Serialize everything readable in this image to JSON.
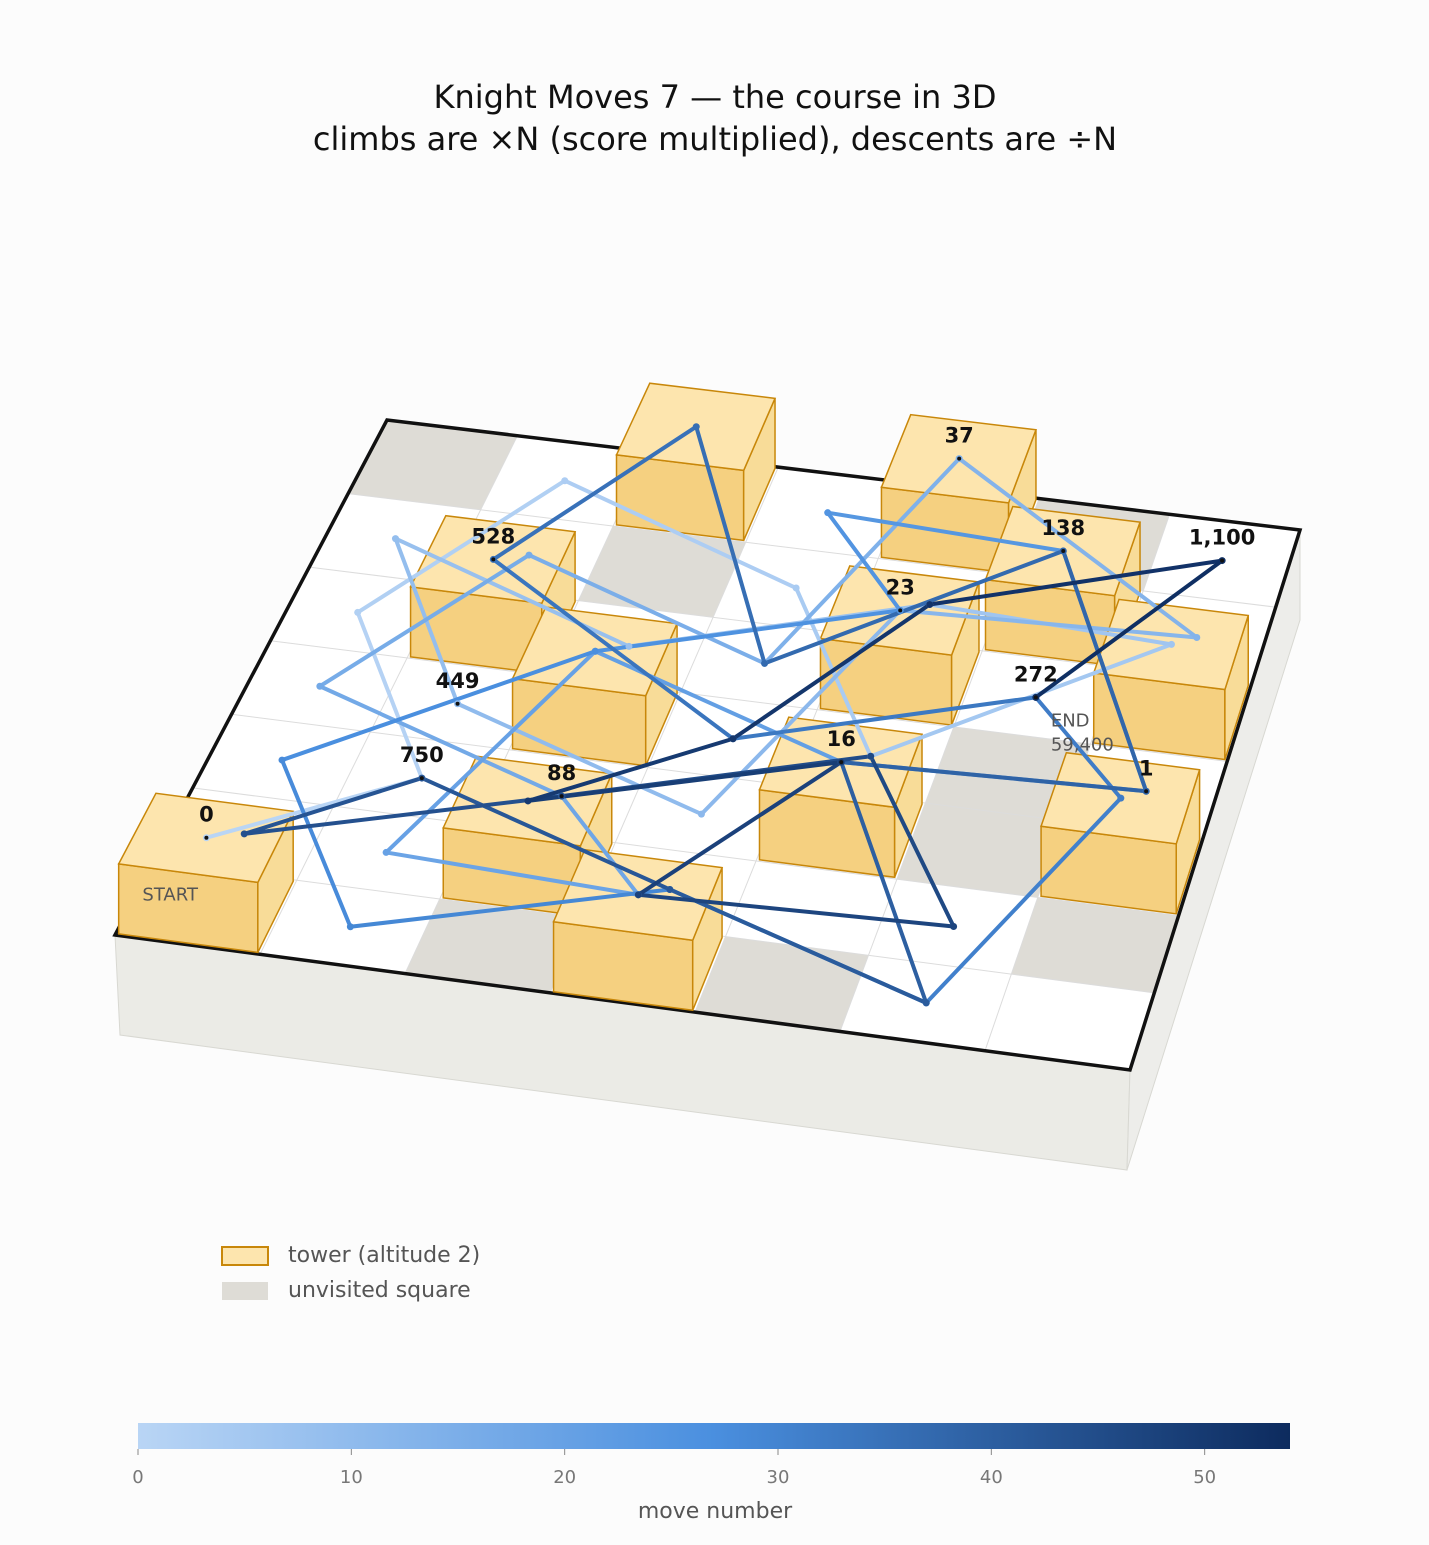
{
  "chart_data": {
    "type": "board3d",
    "title": "Knight Moves 7 — the course in 3D",
    "subtitle": "climbs are ×N (score multiplied), descents are ÷N",
    "board_size": 7,
    "towers": [
      [
        0,
        0
      ],
      [
        1,
        4
      ],
      [
        2,
        6
      ],
      [
        4,
        6
      ],
      [
        5,
        5
      ],
      [
        6,
        4
      ],
      [
        4,
        4
      ],
      [
        2,
        3
      ],
      [
        2,
        1
      ],
      [
        4,
        2
      ],
      [
        3,
        0
      ],
      [
        6,
        2
      ]
    ],
    "unvisited": [
      [
        0,
        6
      ],
      [
        2,
        5
      ],
      [
        5,
        6
      ],
      [
        5,
        3
      ],
      [
        5,
        2
      ],
      [
        2,
        0
      ],
      [
        4,
        0
      ],
      [
        6,
        1
      ]
    ],
    "path": {
      "cols": [
        0,
        1,
        0,
        1,
        3,
        4,
        6,
        4,
        2,
        0,
        1,
        3,
        4,
        6,
        4,
        3,
        1,
        0,
        2,
        3,
        1,
        2,
        4,
        6,
        5,
        3,
        4,
        2,
        0,
        1,
        3,
        5,
        6,
        5,
        3,
        1,
        2,
        3,
        5,
        6,
        4,
        5,
        3,
        1,
        0,
        2,
        4,
        5,
        3,
        4,
        2,
        3,
        4,
        6,
        5
      ],
      "rows": [
        0,
        2,
        4,
        6,
        5,
        3,
        4,
        5,
        4,
        5,
        3,
        2,
        4,
        5,
        6,
        4,
        5,
        3,
        2,
        0,
        1,
        3,
        2,
        3,
        5,
        6,
        4,
        3,
        2,
        0,
        1,
        0,
        2,
        4,
        3,
        4,
        6,
        4,
        5,
        3,
        2,
        0,
        1,
        2,
        1,
        2,
        3,
        1,
        0,
        2,
        1,
        3,
        5,
        6,
        4
      ]
    },
    "scores": {
      "moves": [
        0,
        10,
        12,
        14,
        18,
        22,
        23,
        24,
        33,
        35,
        43,
        53
      ],
      "values": [
        0,
        449,
        23,
        37,
        88,
        16,
        1,
        138,
        272,
        528,
        750,
        1100
      ],
      "value_labels": [
        "0",
        "449",
        "23",
        "37",
        "88",
        "16",
        "1",
        "138",
        "272",
        "528",
        "750",
        "1,100"
      ]
    },
    "start_label": "START",
    "end_label": "END",
    "end_score": "59,400",
    "legend": [
      "tower (altitude 2)",
      "unvisited square"
    ],
    "colorbar": {
      "label": "move number",
      "range": [
        0,
        54
      ],
      "ticks": [
        0,
        10,
        20,
        30,
        40,
        50
      ],
      "colors": [
        "#b9d5f5",
        "#4a8fdf",
        "#0d2b5e"
      ]
    },
    "tower_colors": {
      "top": "#fde5ae",
      "front": "#f5d080",
      "side": "#f8dc98",
      "edge": "#c8870a"
    },
    "unvisited_color": "#dedcd6"
  }
}
